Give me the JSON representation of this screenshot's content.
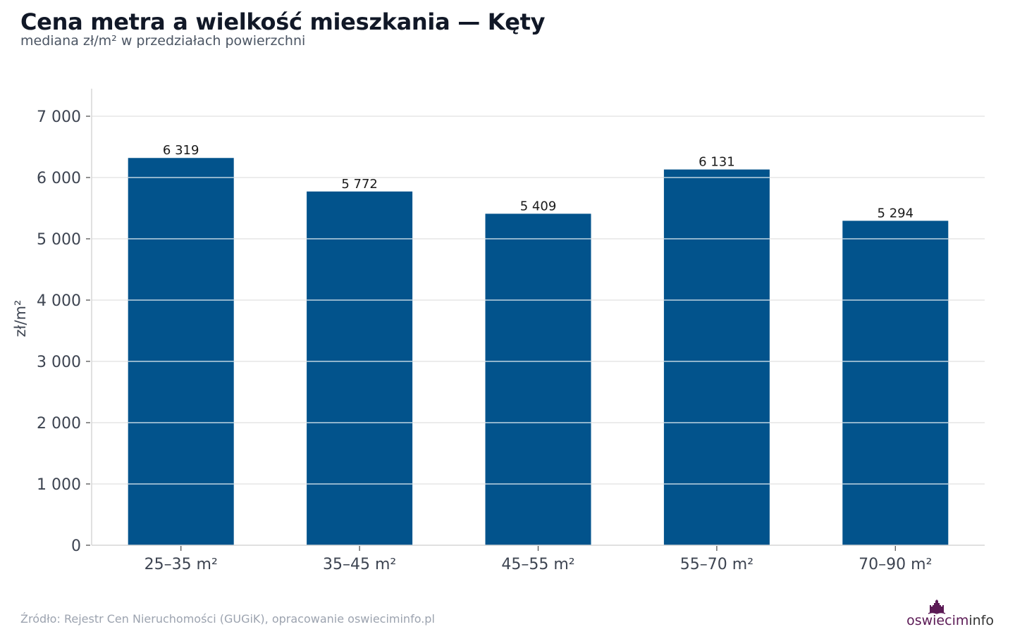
{
  "title": "Cena metra a wielkość mieszkania — Kęty",
  "subtitle": "mediana zł/m² w przedziałach powierzchni",
  "source": "Źródło: Rejestr Cen Nieruchomości (GUGiK), opracowanie oswieciminfo.pl",
  "logo": {
    "part_a": "oswiecim",
    "part_b": "info",
    "icon": "castle-icon"
  },
  "colors": {
    "bar": "#02538c",
    "grid": "#e6e6e6",
    "axis": "#d5d5d5",
    "tick_text": "#3d4451",
    "label_text": "#1a1a1a"
  },
  "chart_data": {
    "type": "bar",
    "title": "Cena metra a wielkość mieszkania — Kęty",
    "subtitle": "mediana zł/m² w przedziałach powierzchni",
    "xlabel": "",
    "ylabel": "zł/m²",
    "categories": [
      "25–35 m²",
      "35–45 m²",
      "45–55 m²",
      "55–70 m²",
      "70–90 m²"
    ],
    "values": [
      6319,
      5772,
      5409,
      6131,
      5294
    ],
    "value_labels": [
      "6 319",
      "5 772",
      "5 409",
      "6 131",
      "5 294"
    ],
    "ylim": [
      0,
      7450
    ],
    "yticks": [
      0,
      1000,
      2000,
      3000,
      4000,
      5000,
      6000,
      7000
    ],
    "ytick_labels": [
      "0",
      "1 000",
      "2 000",
      "3 000",
      "4 000",
      "5 000",
      "6 000",
      "7 000"
    ],
    "grid": true,
    "legend": "none"
  }
}
